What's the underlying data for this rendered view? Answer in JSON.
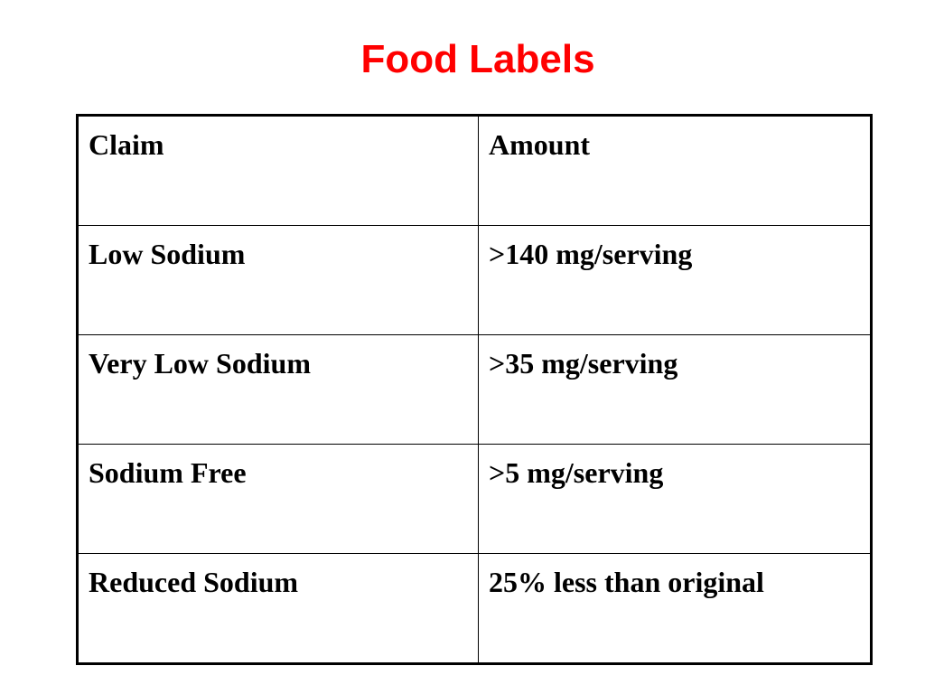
{
  "title": "Food Labels",
  "table": {
    "headers": [
      "Claim",
      "Amount"
    ],
    "rows": [
      [
        "Low Sodium",
        ">140 mg/serving"
      ],
      [
        "Very Low Sodium",
        ">35 mg/serving"
      ],
      [
        "Sodium Free",
        ">5 mg/serving"
      ],
      [
        "Reduced Sodium",
        "25% less than original"
      ]
    ]
  },
  "colors": {
    "title": "#ff0000",
    "text": "#000000",
    "border": "#000000",
    "background": "#ffffff"
  }
}
